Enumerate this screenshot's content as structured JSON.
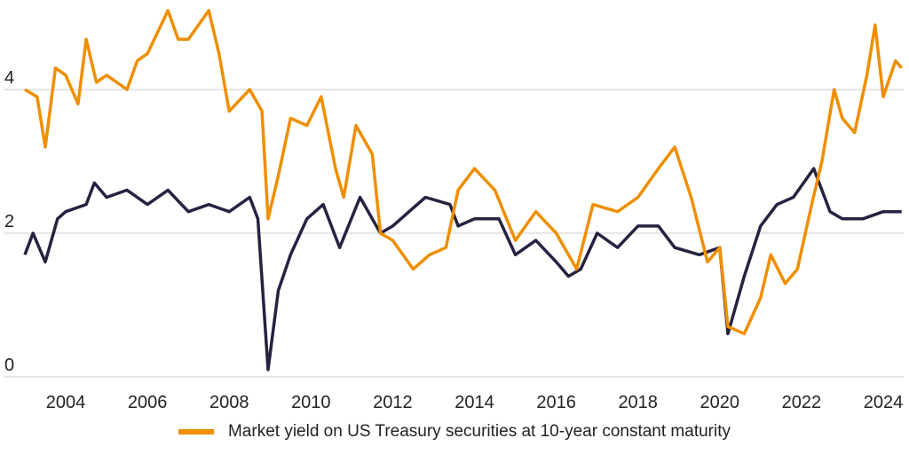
{
  "chart_data": {
    "type": "line",
    "title": "",
    "xlabel": "",
    "ylabel": "",
    "xlim": [
      2003.0,
      2024.5
    ],
    "ylim": [
      0,
      5.25
    ],
    "x_ticks": [
      "2004",
      "2006",
      "2008",
      "2010",
      "2012",
      "2014",
      "2016",
      "2018",
      "2020",
      "2022",
      "2024"
    ],
    "y_ticks": [
      "0",
      "2",
      "4"
    ],
    "grid": "horizontal",
    "legend": {
      "placement": "bottom",
      "entries": [
        "Market yield on US Treasury securities at 10-year constant maturity"
      ]
    },
    "series": [
      {
        "name": "Market yield on US Treasury securities at 10-year constant maturity",
        "color": "#ee8f00",
        "x": [
          2003.0,
          2003.3,
          2003.5,
          2003.75,
          2004.0,
          2004.3,
          2004.5,
          2004.75,
          2005.0,
          2005.5,
          2005.75,
          2006.0,
          2006.5,
          2006.75,
          2007.0,
          2007.5,
          2007.75,
          2008.0,
          2008.5,
          2008.8,
          2008.95,
          2009.2,
          2009.5,
          2009.9,
          2010.25,
          2010.6,
          2010.8,
          2011.1,
          2011.5,
          2011.7,
          2012.0,
          2012.5,
          2012.9,
          2013.3,
          2013.6,
          2014.0,
          2014.5,
          2015.0,
          2015.5,
          2016.0,
          2016.5,
          2016.9,
          2017.5,
          2018.0,
          2018.5,
          2018.9,
          2019.3,
          2019.7,
          2020.0,
          2020.2,
          2020.6,
          2021.0,
          2021.25,
          2021.6,
          2021.9,
          2022.25,
          2022.5,
          2022.8,
          2023.0,
          2023.3,
          2023.6,
          2023.8,
          2024.0,
          2024.3,
          2024.45
        ],
        "values": [
          4.0,
          3.9,
          3.2,
          4.3,
          4.2,
          3.8,
          4.7,
          4.1,
          4.2,
          4.0,
          4.4,
          4.5,
          5.1,
          4.7,
          4.7,
          5.1,
          4.5,
          3.7,
          4.0,
          3.7,
          2.2,
          2.8,
          3.6,
          3.5,
          3.9,
          2.9,
          2.5,
          3.5,
          3.1,
          2.0,
          1.9,
          1.5,
          1.7,
          1.8,
          2.6,
          2.9,
          2.6,
          1.9,
          2.3,
          2.0,
          1.5,
          2.4,
          2.3,
          2.5,
          2.9,
          3.2,
          2.5,
          1.6,
          1.8,
          0.7,
          0.6,
          1.1,
          1.7,
          1.3,
          1.5,
          2.4,
          3.0,
          4.0,
          3.6,
          3.4,
          4.2,
          4.9,
          3.9,
          4.4,
          4.3
        ]
      },
      {
        "color": "#262240",
        "x": [
          2003.0,
          2003.2,
          2003.5,
          2003.8,
          2004.0,
          2004.5,
          2004.7,
          2005.0,
          2005.5,
          2006.0,
          2006.5,
          2007.0,
          2007.5,
          2008.0,
          2008.5,
          2008.7,
          2008.95,
          2009.2,
          2009.5,
          2009.9,
          2010.3,
          2010.7,
          2011.2,
          2011.7,
          2012.0,
          2012.4,
          2012.8,
          2013.4,
          2013.6,
          2014.0,
          2014.6,
          2015.0,
          2015.5,
          2016.0,
          2016.3,
          2016.6,
          2017.0,
          2017.5,
          2018.0,
          2018.5,
          2018.9,
          2019.5,
          2020.0,
          2020.2,
          2020.6,
          2021.0,
          2021.4,
          2021.8,
          2022.3,
          2022.7,
          2023.0,
          2023.5,
          2024.0,
          2024.45
        ],
        "values": [
          1.7,
          2.0,
          1.6,
          2.2,
          2.3,
          2.4,
          2.7,
          2.5,
          2.6,
          2.4,
          2.6,
          2.3,
          2.4,
          2.3,
          2.5,
          2.2,
          0.1,
          1.2,
          1.7,
          2.2,
          2.4,
          1.8,
          2.5,
          2.0,
          2.1,
          2.3,
          2.5,
          2.4,
          2.1,
          2.2,
          2.2,
          1.7,
          1.9,
          1.6,
          1.4,
          1.5,
          2.0,
          1.8,
          2.1,
          2.1,
          1.8,
          1.7,
          1.8,
          0.6,
          1.4,
          2.1,
          2.4,
          2.5,
          2.9,
          2.3,
          2.2,
          2.2,
          2.3,
          2.3
        ]
      }
    ]
  }
}
